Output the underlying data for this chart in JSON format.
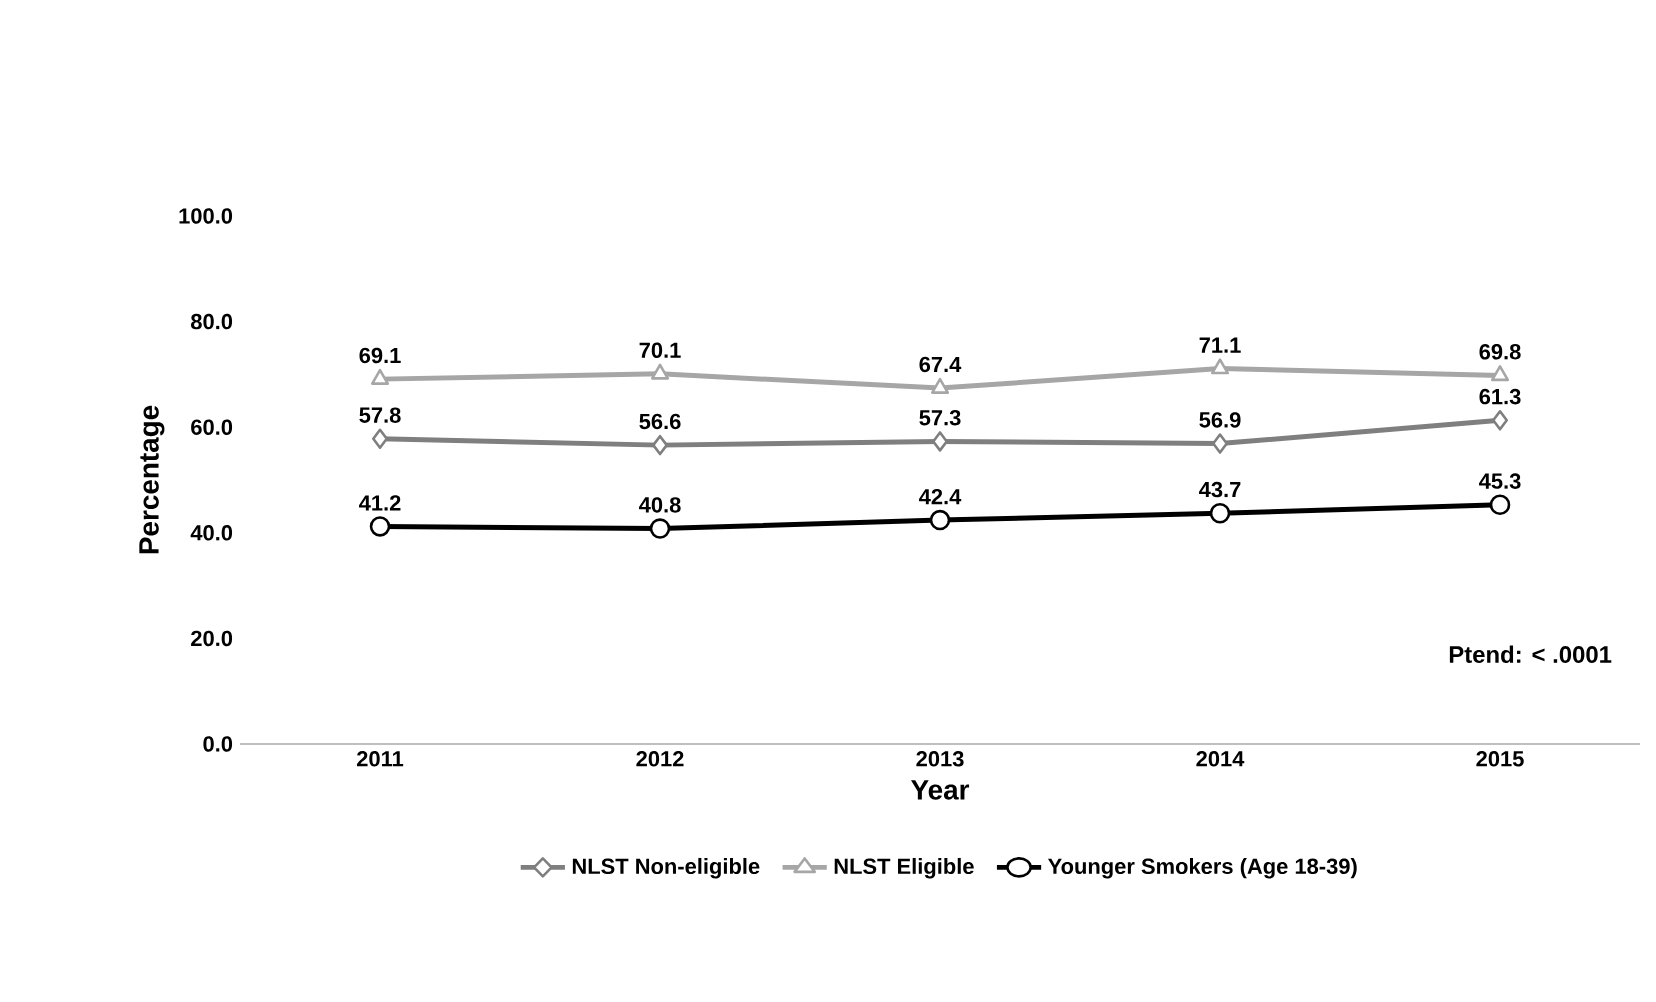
{
  "chart_data": {
    "type": "line",
    "xlabel": "Year",
    "ylabel": "Percentage",
    "categories": [
      "2011",
      "2012",
      "2013",
      "2014",
      "2015"
    ],
    "series": [
      {
        "name": "NLST Non-eligible",
        "color": "#7f7f7f",
        "marker": "diamond",
        "values": [
          57.8,
          56.6,
          57.3,
          56.9,
          61.3
        ]
      },
      {
        "name": "NLST Eligible",
        "color": "#a6a6a6",
        "marker": "triangle",
        "values": [
          69.1,
          70.1,
          67.4,
          71.1,
          69.8
        ]
      },
      {
        "name": "Younger Smokers (Age 18-39)",
        "color": "#000000",
        "marker": "circle",
        "values": [
          41.2,
          40.8,
          42.4,
          43.7,
          45.3
        ]
      }
    ],
    "ylim": [
      0,
      100
    ],
    "yticks": [
      {
        "value": 0,
        "label": "0.0"
      },
      {
        "value": 20,
        "label": "20.0"
      },
      {
        "value": 40,
        "label": "40.0"
      },
      {
        "value": 60,
        "label": "60.0"
      },
      {
        "value": 80,
        "label": "80.0"
      },
      {
        "value": 100,
        "label": "100.0"
      }
    ],
    "data_labels": true,
    "legend": "bottom",
    "grid": false,
    "annotations": [
      "Ptend: < .0001"
    ]
  }
}
